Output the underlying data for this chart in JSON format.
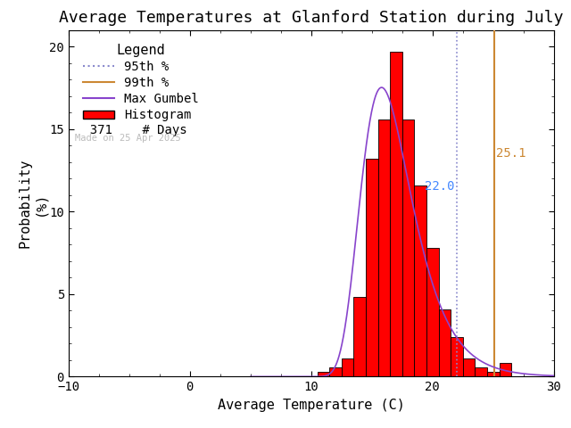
{
  "title": "Average Temperatures at Glanford Station during July",
  "xlabel": "Average Temperature (C)",
  "ylabel": "Probability\n(%)",
  "xlim": [
    -10,
    30
  ],
  "ylim": [
    0,
    21
  ],
  "yticks": [
    0,
    5,
    10,
    15,
    20
  ],
  "xticks": [
    -10,
    0,
    10,
    20,
    30
  ],
  "background_color": "#ffffff",
  "percentile_95": 22.0,
  "percentile_99": 25.1,
  "percentile_95_color": "#8888cc",
  "percentile_95_label_color": "#4488ff",
  "percentile_99_color": "#cc8833",
  "hist_color": "#ff0000",
  "hist_edgecolor": "#000000",
  "gumbel_color": "#8844cc",
  "n_days": 371,
  "watermark": "Made on 25 Apr 2025",
  "watermark_color": "#bbbbbb",
  "bin_edges": [
    10.5,
    11.5,
    12.5,
    13.5,
    14.5,
    15.5,
    16.5,
    17.5,
    18.5,
    19.5,
    20.5,
    21.5,
    22.5,
    23.5,
    24.5,
    25.5,
    26.5
  ],
  "bin_probs": [
    0.27,
    0.54,
    1.08,
    4.85,
    13.2,
    15.6,
    19.7,
    15.6,
    11.6,
    7.8,
    4.05,
    2.4,
    1.1,
    0.54,
    0.27,
    0.81
  ],
  "gumbel_mu": 15.8,
  "gumbel_beta": 2.1,
  "title_fontsize": 13,
  "axis_fontsize": 11,
  "legend_fontsize": 10,
  "tick_fontsize": 10
}
